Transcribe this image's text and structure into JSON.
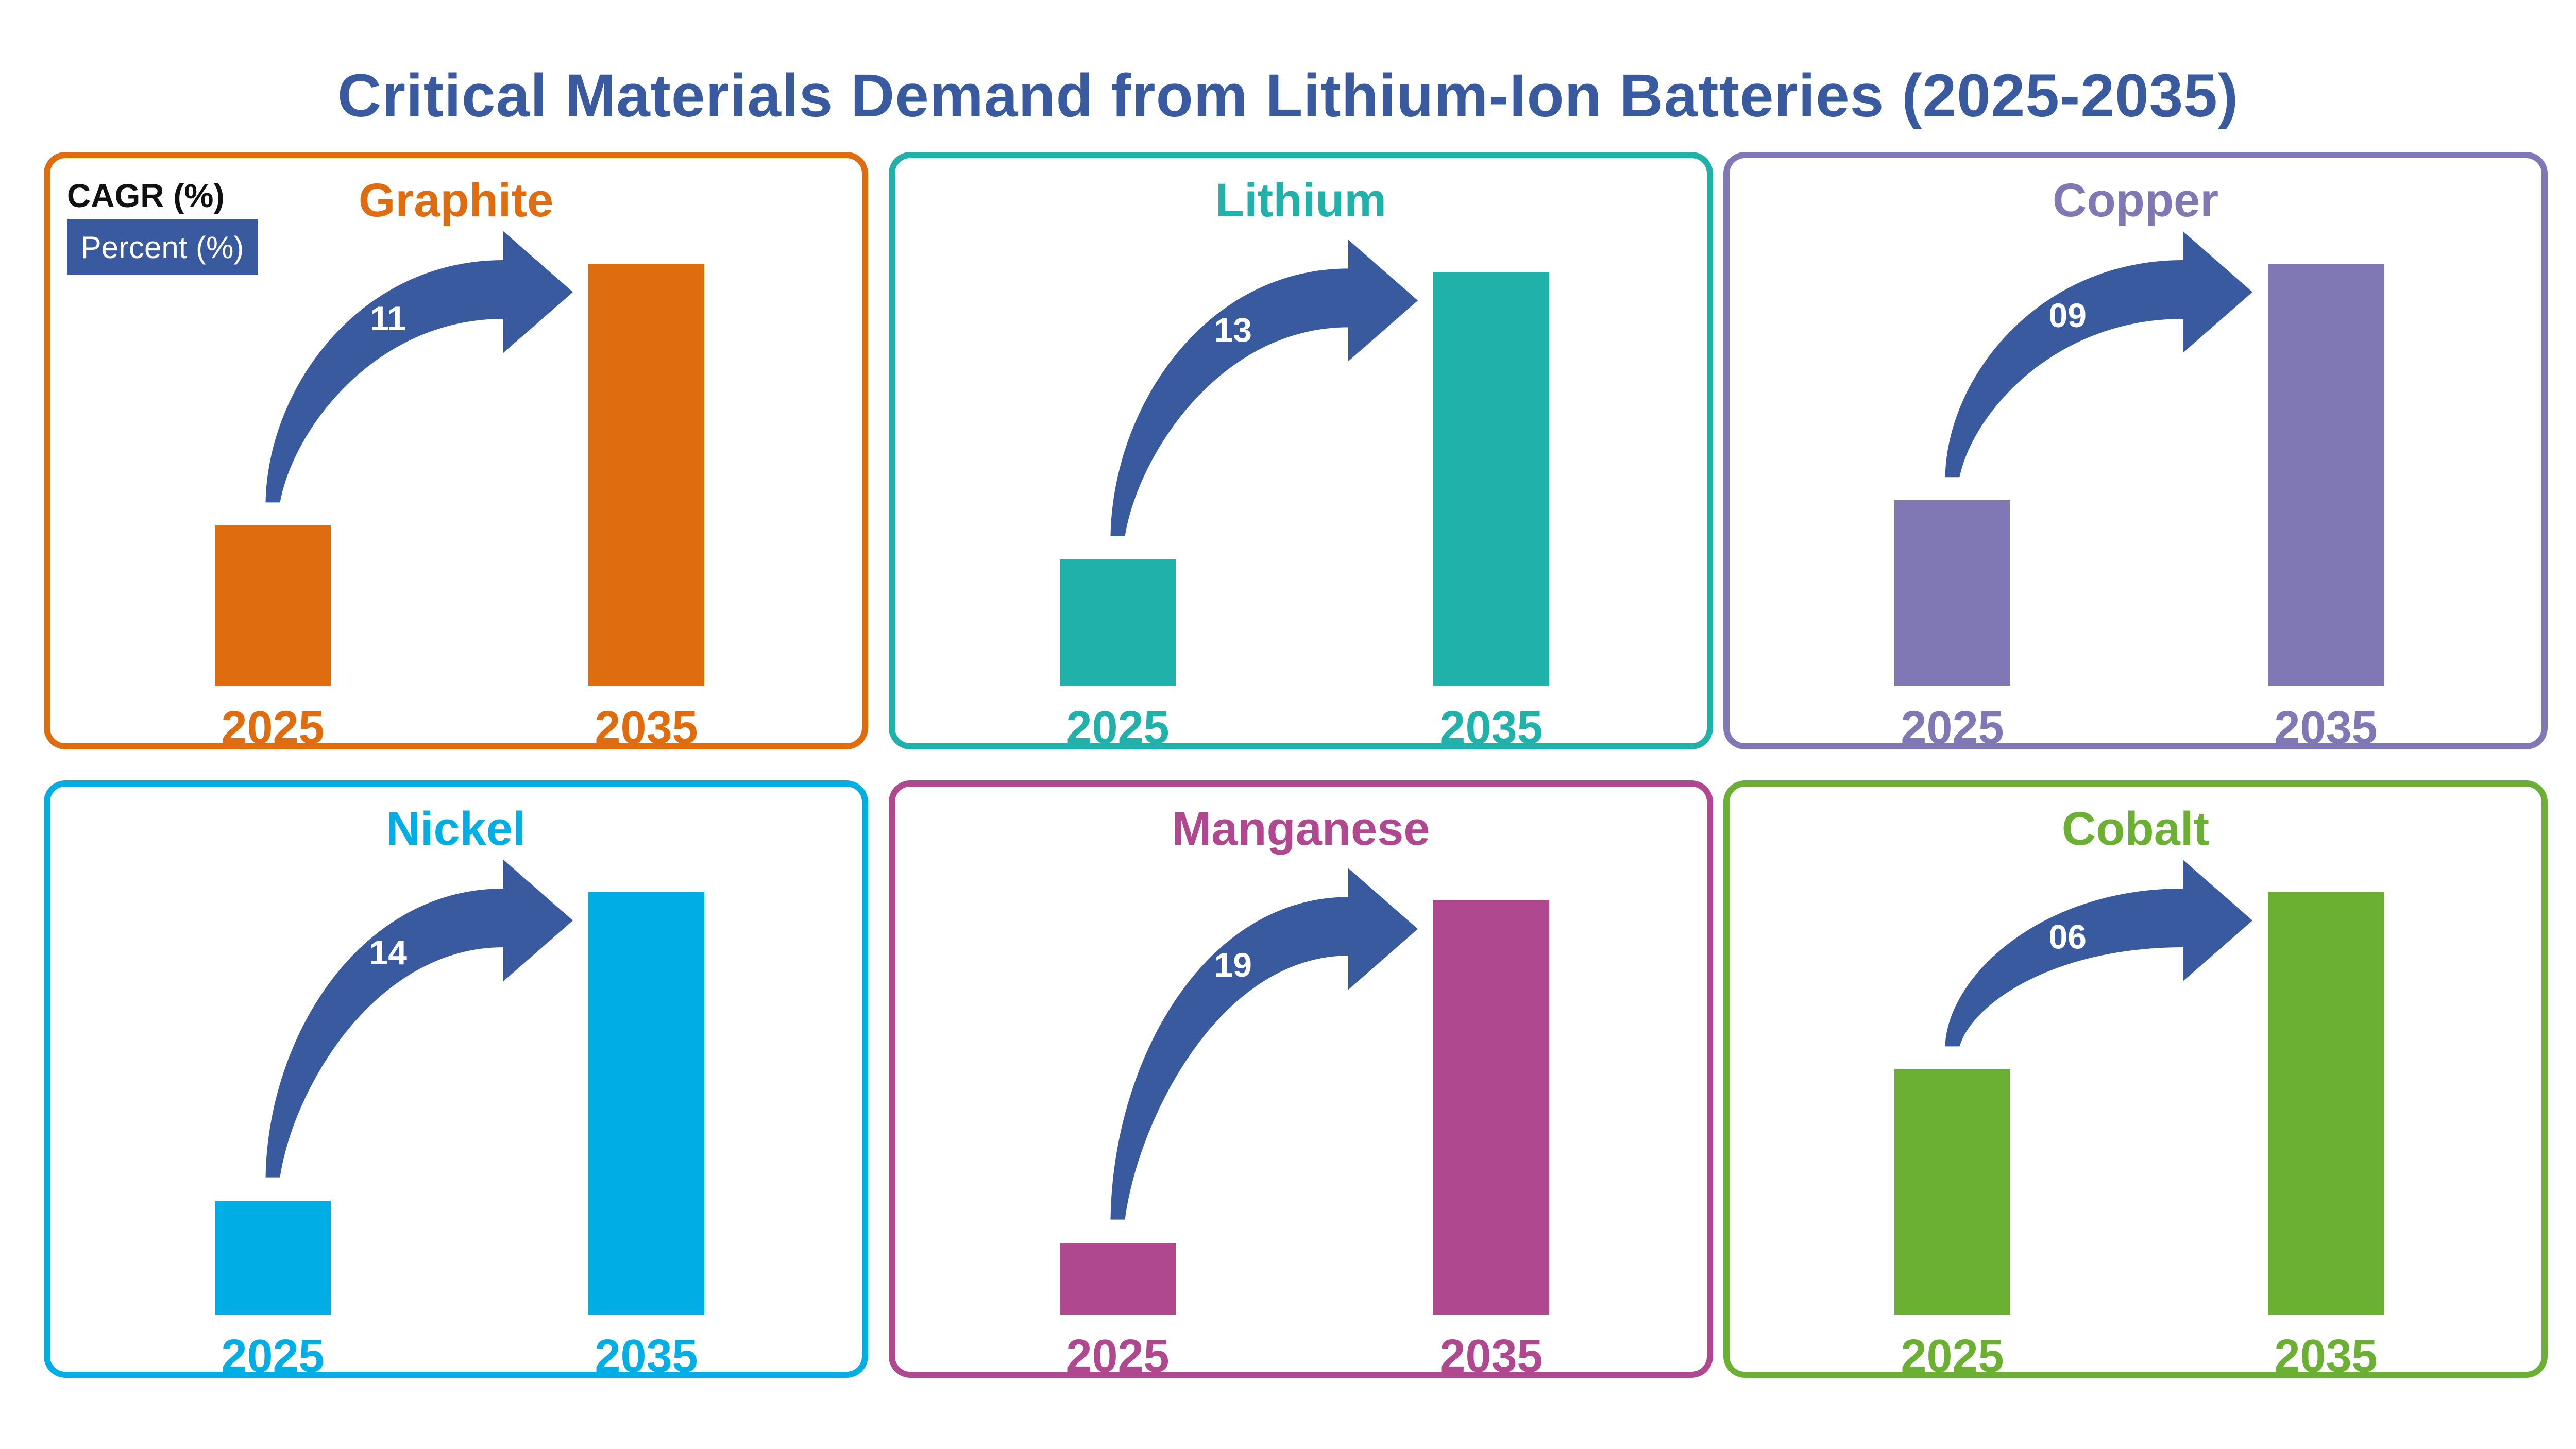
{
  "title": "Critical Materials Demand from Lithium-Ion Batteries (2025-2035)",
  "legend": {
    "title": "CAGR (%)",
    "item": "Percent (%)",
    "color": "#3a5aa0"
  },
  "arrow_color": "#3a5aa0",
  "chart_data": [
    {
      "type": "bar",
      "title": "Graphite",
      "color": "#e06c10",
      "categories": [
        "2025",
        "2035"
      ],
      "values": [
        38,
        100
      ],
      "growth_label": "11"
    },
    {
      "type": "bar",
      "title": "Lithium",
      "color": "#20b2aa",
      "categories": [
        "2025",
        "2035"
      ],
      "values": [
        30,
        98
      ],
      "growth_label": "13"
    },
    {
      "type": "bar",
      "title": "Copper",
      "color": "#8078b4",
      "categories": [
        "2025",
        "2035"
      ],
      "values": [
        44,
        100
      ],
      "growth_label": "09"
    },
    {
      "type": "bar",
      "title": "Nickel",
      "color": "#00aee6",
      "categories": [
        "2025",
        "2035"
      ],
      "values": [
        27,
        100
      ],
      "growth_label": "14"
    },
    {
      "type": "bar",
      "title": "Manganese",
      "color": "#b04890",
      "categories": [
        "2025",
        "2035"
      ],
      "values": [
        17,
        98
      ],
      "growth_label": "19"
    },
    {
      "type": "bar",
      "title": "Cobalt",
      "color": "#6cb033",
      "categories": [
        "2025",
        "2035"
      ],
      "values": [
        58,
        100
      ],
      "growth_label": "06"
    }
  ]
}
